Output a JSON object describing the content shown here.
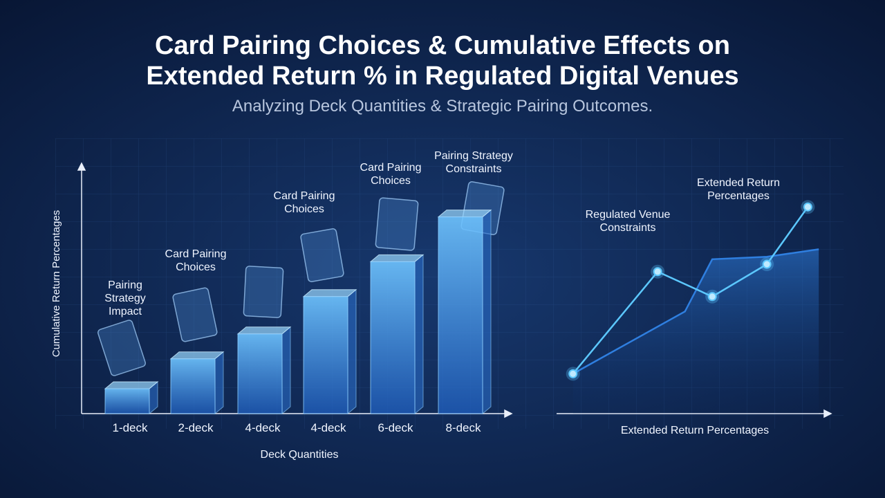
{
  "title": "Card Pairing Choices & Cumulative Effects on Extended Return % in Regulated Digital Venues",
  "subtitle": "Analyzing Deck Quantities & Strategic Pairing Outcomes.",
  "chart_data": [
    {
      "type": "bar",
      "categories": [
        "1-deck",
        "2-deck",
        "4-deck",
        "4-deck",
        "6-deck",
        "8-deck"
      ],
      "values": [
        10,
        22,
        32,
        47,
        61,
        79
      ],
      "color": "#3f8fe0",
      "ylim": [
        0,
        100
      ],
      "xlabel": "Deck Quantities",
      "ylabel": "Cumulative Return Percentages",
      "annotations": [
        "Pairing Strategy Impact",
        "Card Pairing Choices",
        "Card Pairing Choices",
        "Card Pairing Choices",
        "Pairing Strategy Constraints"
      ]
    },
    {
      "type": "line",
      "xlim": [
        0,
        100
      ],
      "ylim": [
        0,
        100
      ],
      "xlabel": "Extended Return Percentages",
      "series": [
        {
          "color": "#5cc8ff",
          "x": [
            6,
            37,
            57,
            77,
            92
          ],
          "values": [
            16,
            57,
            47,
            60,
            83
          ]
        },
        {
          "color": "#2f7fe0",
          "x": [
            6,
            24,
            47,
            57,
            77,
            96
          ],
          "values": [
            16,
            27,
            41,
            62,
            63,
            66
          ]
        }
      ],
      "annotations": [
        "Regulated Venue Constraints",
        "Extended Return Percentages"
      ]
    }
  ]
}
